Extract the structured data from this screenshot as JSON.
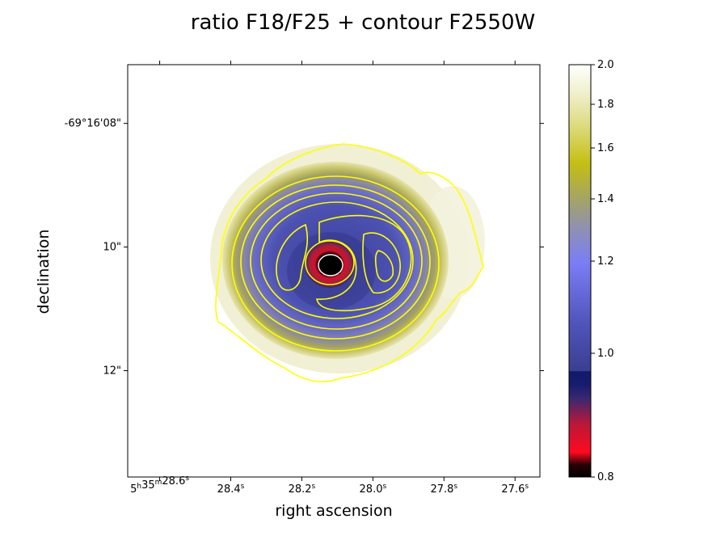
{
  "chart_data": {
    "type": "heatmap",
    "title": "ratio F18/F25 + contour F2550W",
    "xlabel": "right ascension",
    "ylabel": "declination",
    "x_ticks": [
      {
        "label": "5h35m28.6s",
        "ra_sec": 28.6
      },
      {
        "label": "28.4s",
        "ra_sec": 28.4
      },
      {
        "label": "28.2s",
        "ra_sec": 28.2
      },
      {
        "label": "28.0s",
        "ra_sec": 28.0
      },
      {
        "label": "27.8s",
        "ra_sec": 27.8
      },
      {
        "label": "27.6s",
        "ra_sec": 27.6
      }
    ],
    "y_ticks": [
      {
        "label": "-69°16'08\"",
        "dec_arcsec": 8
      },
      {
        "label": "10\"",
        "dec_arcsec": 10
      },
      {
        "label": "12\"",
        "dec_arcsec": 12
      }
    ],
    "ra_range_sec": [
      28.69,
      27.53
    ],
    "dec_range_arcsec": [
      7.05,
      13.72
    ],
    "colorbar": {
      "min": 0.8,
      "max": 2.0,
      "ticks": [
        "0.8",
        "1.0",
        "1.2",
        "1.4",
        "1.6",
        "1.8",
        "2.0"
      ],
      "colormap": "gist_stern-like: black, red, navy, blue, periwinkle, gray, olive-yellow, white"
    },
    "contour_color": "#ffff00",
    "image_description_values": {
      "center_ra_sec": 28.16,
      "center_dec_arcsec": 10.33,
      "center_ratio": 0.8,
      "inner_ring_ratio": 0.85,
      "disk_ratio": 1.05,
      "edge_ratio": 1.45,
      "halo_ratio": 1.85
    }
  }
}
